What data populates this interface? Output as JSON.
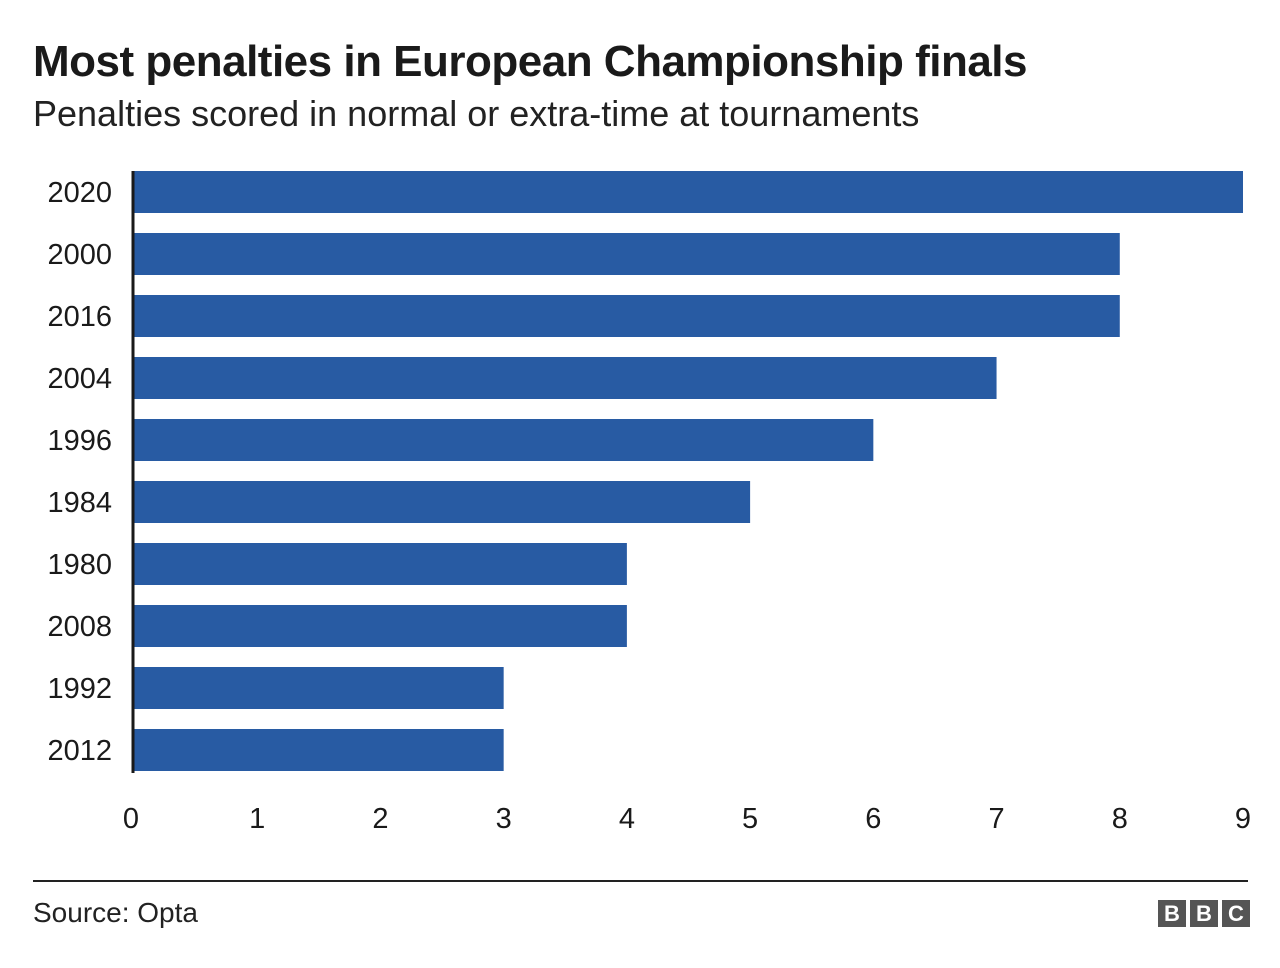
{
  "header": {
    "title": "Most penalties in European Championship finals",
    "subtitle": "Penalties scored in normal or extra-time at tournaments"
  },
  "footer": {
    "source": "Source: Opta",
    "logo_letters": [
      "B",
      "B",
      "C"
    ]
  },
  "colors": {
    "bar": "#285ba3",
    "axis": "#1a1a1a",
    "text": "#1a1a1a",
    "logo": "#555555"
  },
  "chart_data": {
    "type": "bar",
    "orientation": "horizontal",
    "categories": [
      "2020",
      "2000",
      "2016",
      "2004",
      "1996",
      "1984",
      "1980",
      "2008",
      "1992",
      "2012"
    ],
    "values": [
      9,
      8,
      8,
      7,
      6,
      5,
      4,
      4,
      3,
      3
    ],
    "title": "Most penalties in European Championship finals",
    "subtitle": "Penalties scored in normal or extra-time at tournaments",
    "xlim": [
      0,
      9
    ],
    "x_ticks": [
      0,
      1,
      2,
      3,
      4,
      5,
      6,
      7,
      8,
      9
    ],
    "grid": false,
    "legend": "none"
  }
}
